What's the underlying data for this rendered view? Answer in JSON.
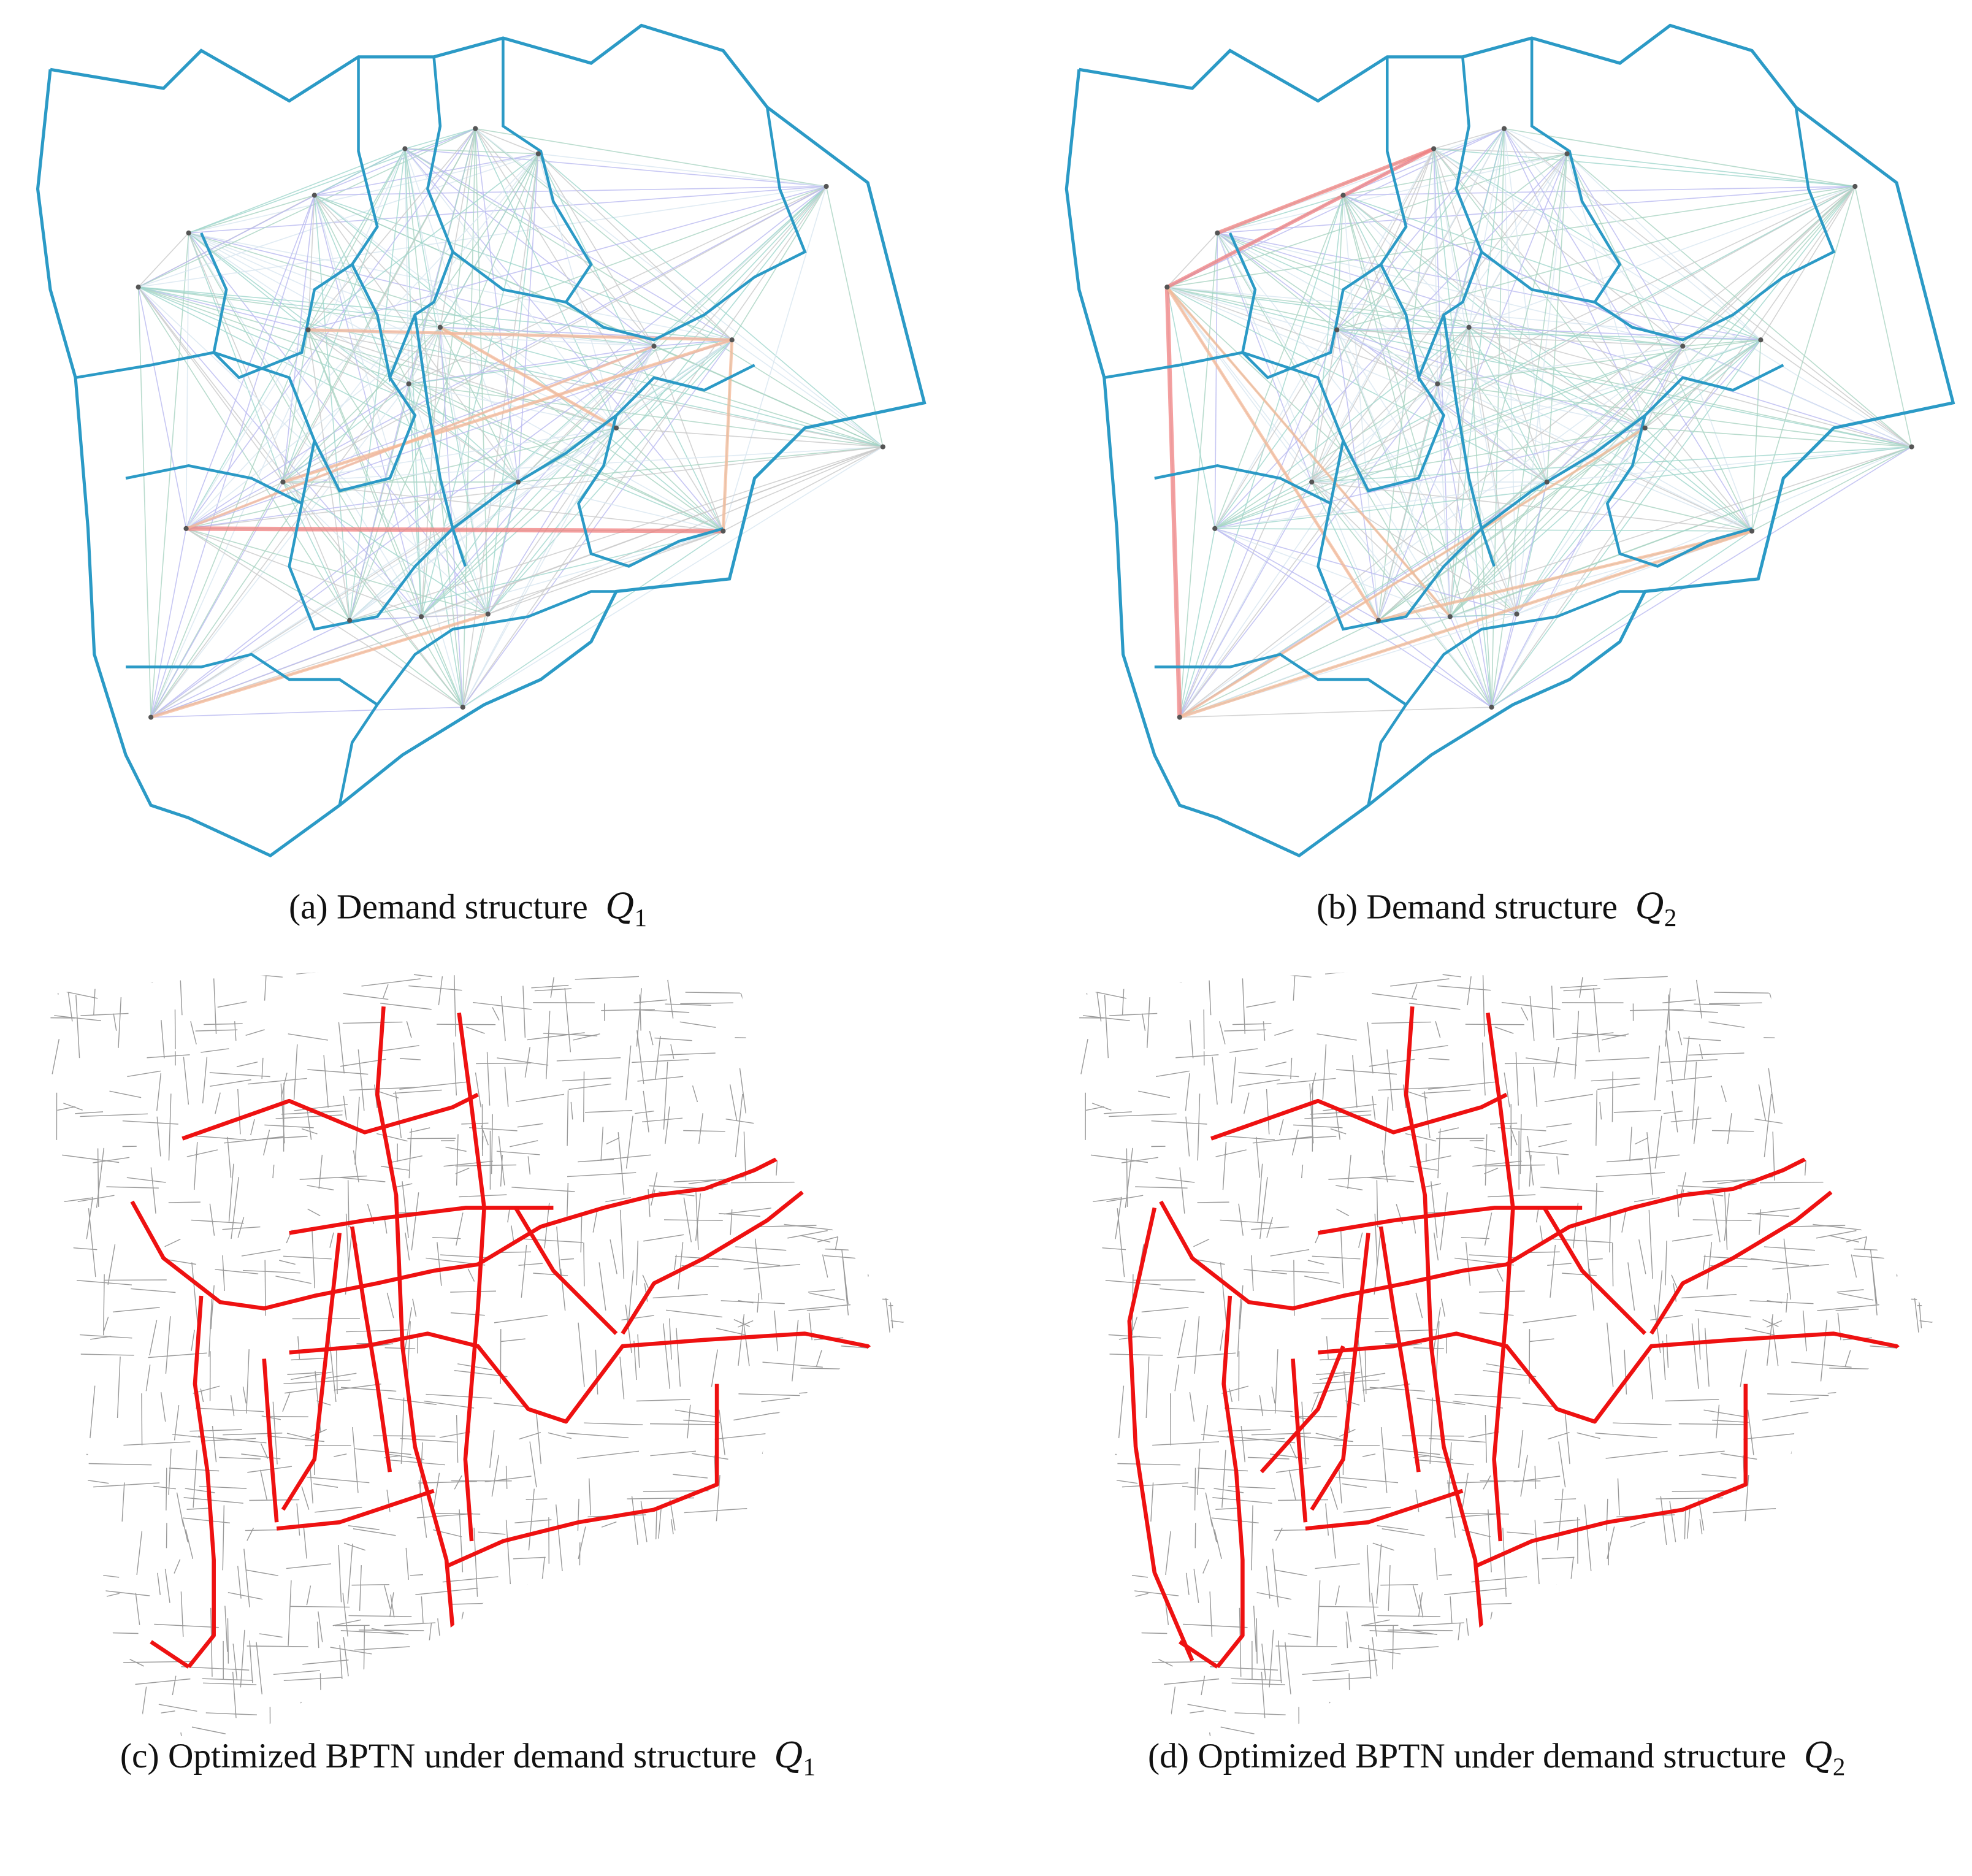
{
  "panels": [
    {
      "caption": "(a) Demand structure",
      "symbol": "Q",
      "subscript": "1"
    },
    {
      "caption": "(b) Demand structure",
      "symbol": "Q",
      "subscript": "2"
    },
    {
      "caption": "(c) Optimized BPTN under demand structure",
      "symbol": "Q",
      "subscript": "1"
    },
    {
      "caption": "(d) Optimized BPTN under demand structure",
      "symbol": "Q",
      "subscript": "2"
    }
  ]
}
